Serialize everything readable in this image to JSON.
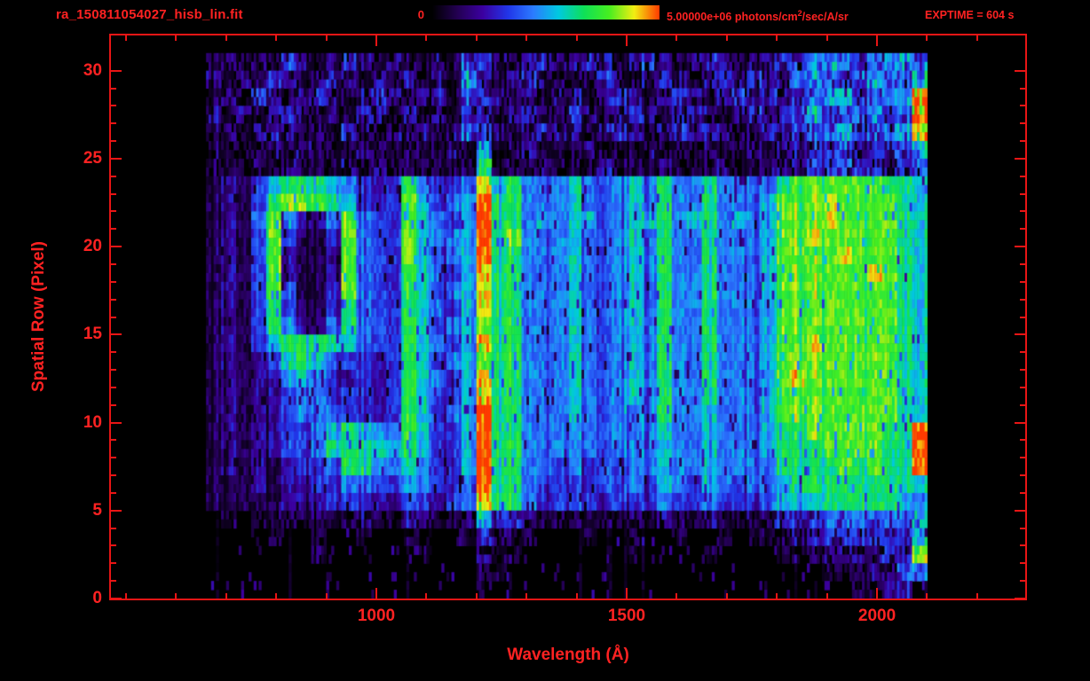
{
  "colors": {
    "text_red": "#ff2222",
    "frame_red": "#e81515"
  },
  "header": {
    "filename": "ra_150811054027_hisb_lin.fit",
    "colorbar": {
      "min_label": "0",
      "max_value": "5.00000e+06",
      "units_prefix": " photons/cm",
      "units_sup": "2",
      "units_suffix": "/sec/A/sr",
      "exptime_label": "EXPTIME = 604 s"
    }
  },
  "chart_data": {
    "type": "heatmap",
    "title": "ra_150811054027_hisb_lin.fit",
    "xlabel": "Wavelength (Å)",
    "ylabel": "Spatial Row (Pixel)",
    "xlim": [
      470,
      2296
    ],
    "ylim": [
      0,
      32
    ],
    "x_major_ticks": [
      1000,
      1500,
      2000
    ],
    "x_minor_step": 100,
    "x_minor_range": [
      500,
      2200
    ],
    "y_major_ticks": [
      0,
      5,
      10,
      15,
      20,
      25,
      30
    ],
    "y_minor_step": 1,
    "colorbar": {
      "min": 0,
      "max": 5000000,
      "units": "photons/cm^2/sec/A/sr"
    },
    "exptime_seconds": 604,
    "colormap": [
      "#000000",
      "#230052",
      "#3b00a0",
      "#2135e8",
      "#2b7bff",
      "#00c9e0",
      "#0ee058",
      "#46ee20",
      "#f2ee12",
      "#ff3a00"
    ],
    "features": [
      {
        "x": 1216,
        "rows": [
          5,
          23
        ],
        "desc": "brightest vertical emission band, saturated red core"
      },
      {
        "x_range": [
          790,
          960
        ],
        "rows": [
          12,
          23
        ],
        "desc": "bright green ring-shaped region"
      },
      {
        "x": 1050,
        "rows": [
          8,
          23
        ],
        "desc": "green vertical emission band"
      },
      {
        "x": 1265,
        "rows": [
          5,
          23
        ],
        "desc": "green vertical emission band"
      },
      {
        "x_range": [
          1800,
          2040
        ],
        "rows": [
          10,
          23
        ],
        "desc": "broad bright green continuum region"
      },
      {
        "x": 2060,
        "desc": "narrow red/orange streaks near right edge"
      },
      {
        "rows": [
          24,
          25
        ],
        "desc": "dark gap between main band and upper noise band"
      },
      {
        "rows": [
          26,
          30
        ],
        "desc": "noisy purple/blue band with vertical cyan streaks"
      }
    ],
    "grid": {
      "x_start": 660,
      "x_step": 30,
      "n_cols": 48,
      "n_rows": 31,
      "intensity_scale": "digits 0-9 map linearly to 0 .. 5.00000e+06",
      "rows_top_to_bottom": [
        "121213212321211214321232232123212321233345434554",
        "212132123212121215212321123212321232323454345445",
        "121321232123212314321212212321232123232345534459",
        "212123212132121213212321321232123212323453445349",
        "121232121321212124321232212321232321232344534458",
        "111121211121111121511211121112111211212233423345",
        "111212111212111112611121112111211121122233433234",
        "121356665432364334856444543454644644446777777665",
        "121367776532375345966444543454644644457778777765",
        "121474224743375435966454553455645645457778777765",
        "121373113743375445967444543454644644457787777765",
        "121372112743375345966444543454644644457777877765",
        "121372112743365435866444543454644644457777778765",
        "121373113743365345866444543454644644457777777765",
        "121363113643365435866444543454644644457777777765",
        "121364224643365345766444543454644644457777777765",
        "121356666543365435866444543454644644457787777765",
        "121235654332365345766444543454644644457777777765",
        "121224543232365435866444543454644644457877777765",
        "121223443332365335866444543454644644457777777765",
        "121223444332365345966444543444644544457777777765",
        "121223345654465335966444443444544544456677777669",
        "121223346665565335966444443444544544456667777669",
        "121212334664454335966443433344544544446666767669",
        "111212233443344334966433333343543543445666666665",
        "111112223332233234866433332333433433345556666654",
        "010111121121122112533211111121211211223334444445",
        "000010010010011001321100010010010010111223333335",
        "000000010000001000211000000010000100001112222338",
        "000000000000000000110000000000000000000001112244",
        "000000000000000000100000000000000000000000011230"
      ]
    }
  }
}
